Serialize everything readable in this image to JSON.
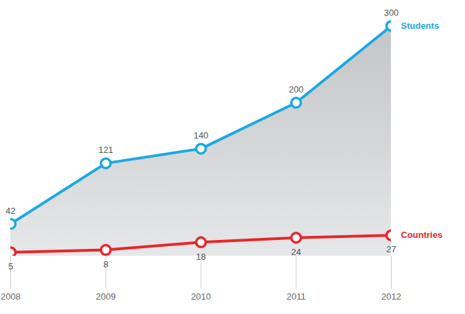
{
  "chart_data": {
    "type": "line",
    "x": [
      2008,
      2009,
      2010,
      2011,
      2012
    ],
    "xlim": [
      2008,
      2012
    ],
    "xticks": [
      2008,
      2009,
      2010,
      2011,
      2012
    ],
    "ylim": [
      0,
      320
    ],
    "tick_labels": "x",
    "data_labels": true,
    "series": [
      {
        "name": "Students",
        "color": "#1ba9e1",
        "type": "area",
        "marker": "circle",
        "values": [
          42,
          121,
          140,
          200,
          300
        ]
      },
      {
        "name": "Countries",
        "color": "#e8262b",
        "type": "line",
        "marker": "circle",
        "values": [
          5,
          8,
          18,
          24,
          27
        ]
      }
    ]
  }
}
